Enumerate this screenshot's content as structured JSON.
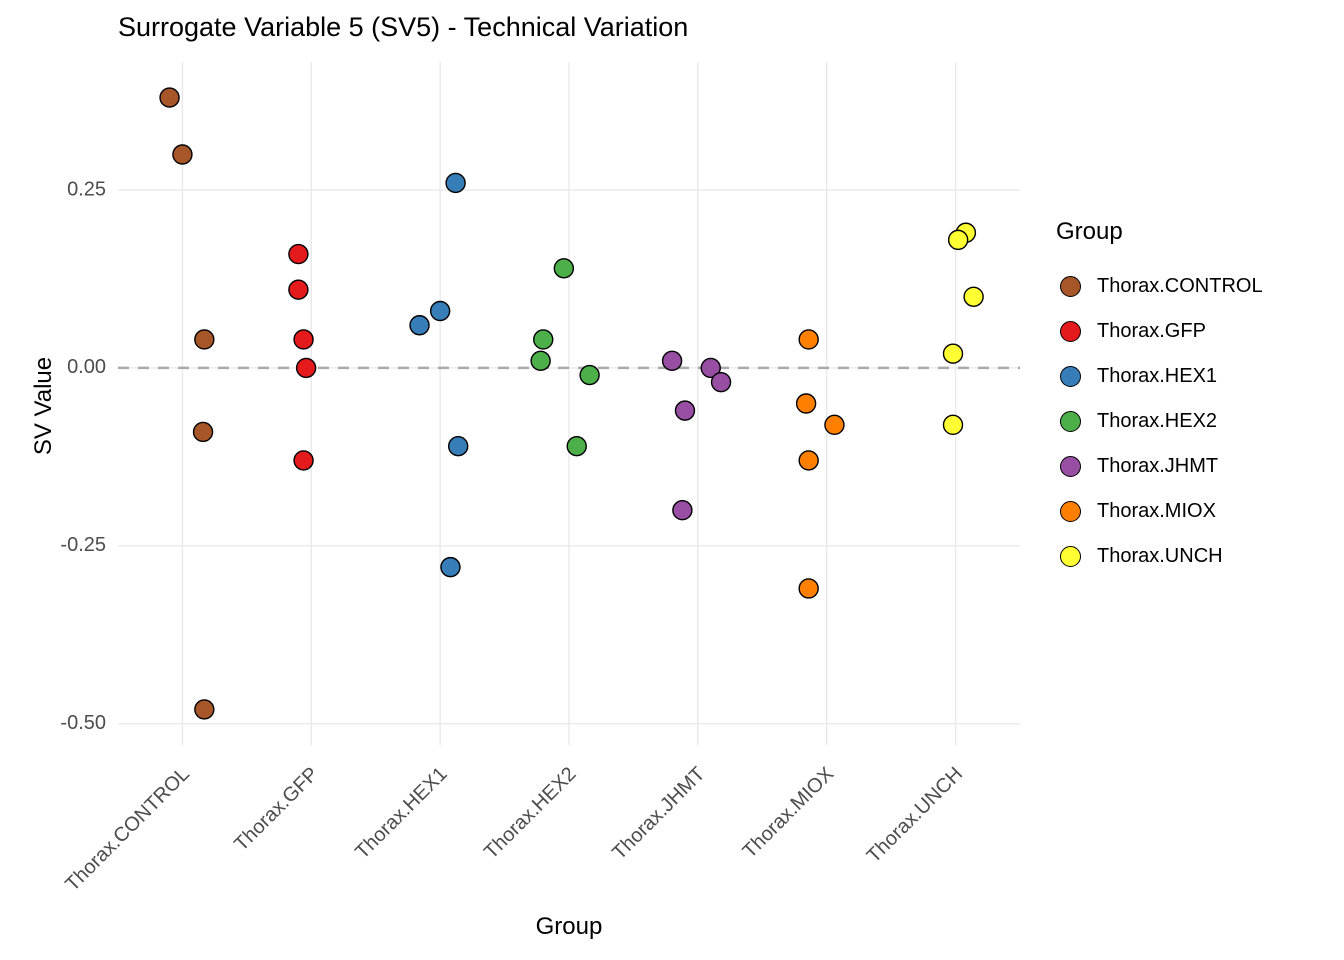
{
  "title": "Surrogate Variable 5 (SV5) - Technical Variation",
  "axes": {
    "x_title": "Group",
    "y_title": "SV Value"
  },
  "legend": {
    "title": "Group",
    "items": [
      {
        "label": "Thorax.CONTROL",
        "color": "#A65628"
      },
      {
        "label": "Thorax.GFP",
        "color": "#E41A1C"
      },
      {
        "label": "Thorax.HEX1",
        "color": "#377EB8"
      },
      {
        "label": "Thorax.HEX2",
        "color": "#4DAF4A"
      },
      {
        "label": "Thorax.JHMT",
        "color": "#984EA3"
      },
      {
        "label": "Thorax.MIOX",
        "color": "#FF7F00"
      },
      {
        "label": "Thorax.UNCH",
        "color": "#FFFF33"
      }
    ]
  },
  "style": {
    "background": "#FFFFFF",
    "grid_color": "#E9E9E9",
    "ref_line_color": "#AAAAAA",
    "point_stroke": "#000000",
    "tick_label_color": "#4D4D4D",
    "text_color": "#000000"
  },
  "chart_data": {
    "type": "scatter",
    "title": "Surrogate Variable 5 (SV5) - Technical Variation",
    "xlabel": "Group",
    "ylabel": "SV Value",
    "categories": [
      "Thorax.CONTROL",
      "Thorax.GFP",
      "Thorax.HEX1",
      "Thorax.HEX2",
      "Thorax.JHMT",
      "Thorax.MIOX",
      "Thorax.UNCH"
    ],
    "ylim": [
      -0.53,
      0.43
    ],
    "yticks": [
      0.25,
      0.0,
      -0.25,
      -0.5
    ],
    "ytick_labels": [
      "0.25",
      "0.00",
      "-0.25",
      "-0.50"
    ],
    "grid": true,
    "reference_line_y": 0,
    "legend_position": "right",
    "series": [
      {
        "name": "Thorax.CONTROL",
        "color": "#A65628",
        "points": [
          {
            "value": 0.38,
            "jitter": -0.1
          },
          {
            "value": 0.3,
            "jitter": 0.0
          },
          {
            "value": 0.04,
            "jitter": 0.17
          },
          {
            "value": -0.09,
            "jitter": 0.16
          },
          {
            "value": -0.48,
            "jitter": 0.17
          }
        ]
      },
      {
        "name": "Thorax.GFP",
        "color": "#E41A1C",
        "points": [
          {
            "value": 0.16,
            "jitter": -0.1
          },
          {
            "value": 0.11,
            "jitter": -0.1
          },
          {
            "value": 0.04,
            "jitter": -0.06
          },
          {
            "value": 0.0,
            "jitter": -0.04
          },
          {
            "value": -0.13,
            "jitter": -0.06
          }
        ]
      },
      {
        "name": "Thorax.HEX1",
        "color": "#377EB8",
        "points": [
          {
            "value": 0.26,
            "jitter": 0.12
          },
          {
            "value": 0.08,
            "jitter": 0.0
          },
          {
            "value": 0.06,
            "jitter": -0.16
          },
          {
            "value": -0.11,
            "jitter": 0.14
          },
          {
            "value": -0.28,
            "jitter": 0.08
          }
        ]
      },
      {
        "name": "Thorax.HEX2",
        "color": "#4DAF4A",
        "points": [
          {
            "value": 0.14,
            "jitter": -0.04
          },
          {
            "value": 0.04,
            "jitter": -0.2
          },
          {
            "value": 0.01,
            "jitter": -0.22
          },
          {
            "value": -0.01,
            "jitter": 0.16
          },
          {
            "value": -0.11,
            "jitter": 0.06
          }
        ]
      },
      {
        "name": "Thorax.JHMT",
        "color": "#984EA3",
        "points": [
          {
            "value": 0.01,
            "jitter": -0.2
          },
          {
            "value": 0.0,
            "jitter": 0.1
          },
          {
            "value": -0.02,
            "jitter": 0.18
          },
          {
            "value": -0.06,
            "jitter": -0.1
          },
          {
            "value": -0.2,
            "jitter": -0.12
          }
        ]
      },
      {
        "name": "Thorax.MIOX",
        "color": "#FF7F00",
        "points": [
          {
            "value": 0.04,
            "jitter": -0.14
          },
          {
            "value": -0.05,
            "jitter": -0.16
          },
          {
            "value": -0.08,
            "jitter": 0.06
          },
          {
            "value": -0.13,
            "jitter": -0.14
          },
          {
            "value": -0.31,
            "jitter": -0.14
          }
        ]
      },
      {
        "name": "Thorax.UNCH",
        "color": "#FFFF33",
        "points": [
          {
            "value": 0.19,
            "jitter": 0.08
          },
          {
            "value": 0.18,
            "jitter": 0.02
          },
          {
            "value": 0.1,
            "jitter": 0.14
          },
          {
            "value": 0.02,
            "jitter": -0.02
          },
          {
            "value": -0.08,
            "jitter": -0.02
          }
        ]
      }
    ]
  }
}
